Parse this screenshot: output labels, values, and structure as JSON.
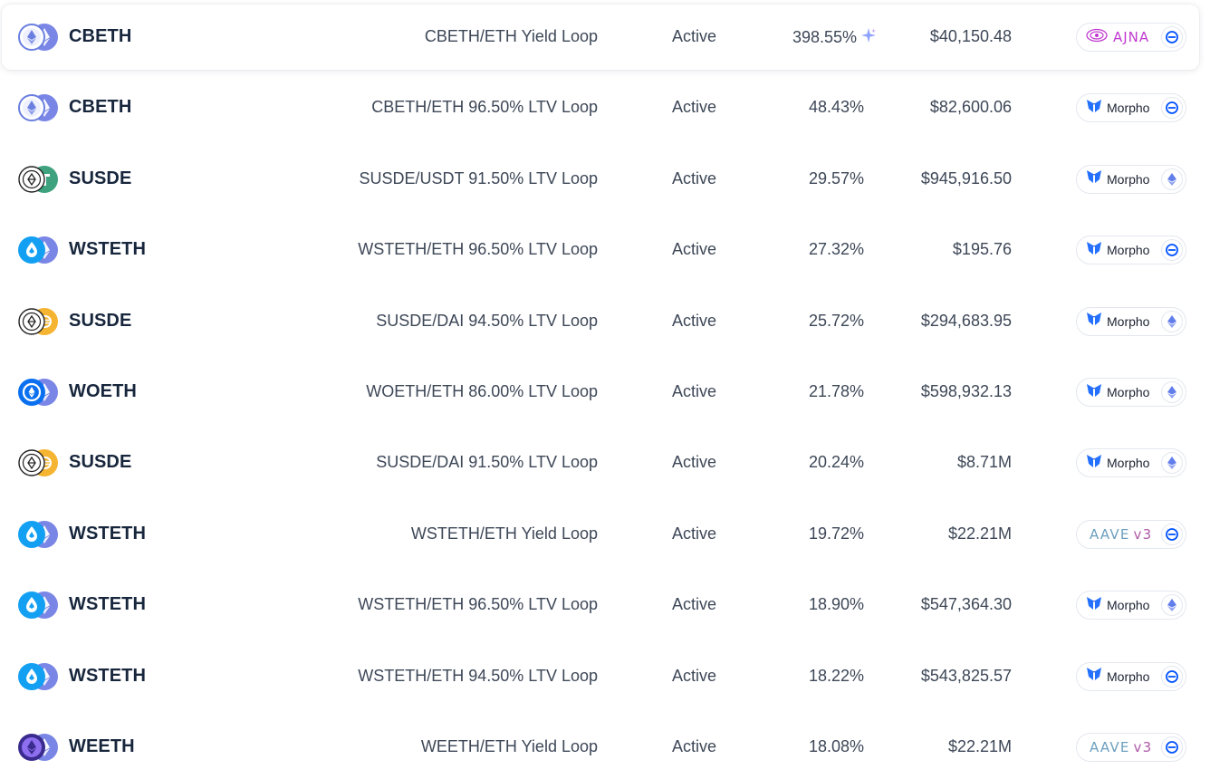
{
  "rows": [
    {
      "token": "CBETH",
      "strategy": "CBETH/ETH Yield Loop",
      "status": "Active",
      "apy": "398.55%",
      "tvl": "$40,150.48",
      "protocol": "ajna",
      "protocol_label": "AJNA",
      "chain": "base",
      "icons": [
        "cbeth",
        "eth"
      ],
      "boosted": true,
      "highlight": true
    },
    {
      "token": "CBETH",
      "strategy": "CBETH/ETH 96.50% LTV Loop",
      "status": "Active",
      "apy": "48.43%",
      "tvl": "$82,600.06",
      "protocol": "morpho",
      "protocol_label": "Morpho",
      "chain": "base",
      "icons": [
        "cbeth",
        "eth"
      ]
    },
    {
      "token": "SUSDE",
      "strategy": "SUSDE/USDT 91.50% LTV Loop",
      "status": "Active",
      "apy": "29.57%",
      "tvl": "$945,916.50",
      "protocol": "morpho",
      "protocol_label": "Morpho",
      "chain": "ethereum",
      "icons": [
        "susde",
        "usdt"
      ]
    },
    {
      "token": "WSTETH",
      "strategy": "WSTETH/ETH 96.50% LTV Loop",
      "status": "Active",
      "apy": "27.32%",
      "tvl": "$195.76",
      "protocol": "morpho",
      "protocol_label": "Morpho",
      "chain": "base",
      "icons": [
        "wsteth",
        "eth"
      ]
    },
    {
      "token": "SUSDE",
      "strategy": "SUSDE/DAI 94.50% LTV Loop",
      "status": "Active",
      "apy": "25.72%",
      "tvl": "$294,683.95",
      "protocol": "morpho",
      "protocol_label": "Morpho",
      "chain": "ethereum",
      "icons": [
        "susde",
        "dai"
      ]
    },
    {
      "token": "WOETH",
      "strategy": "WOETH/ETH 86.00% LTV Loop",
      "status": "Active",
      "apy": "21.78%",
      "tvl": "$598,932.13",
      "protocol": "morpho",
      "protocol_label": "Morpho",
      "chain": "ethereum",
      "icons": [
        "woeth",
        "eth"
      ]
    },
    {
      "token": "SUSDE",
      "strategy": "SUSDE/DAI 91.50% LTV Loop",
      "status": "Active",
      "apy": "20.24%",
      "tvl": "$8.71M",
      "protocol": "morpho",
      "protocol_label": "Morpho",
      "chain": "ethereum",
      "icons": [
        "susde",
        "dai"
      ]
    },
    {
      "token": "WSTETH",
      "strategy": "WSTETH/ETH Yield Loop",
      "status": "Active",
      "apy": "19.72%",
      "tvl": "$22.21M",
      "protocol": "aave",
      "protocol_label": "AAVE",
      "protocol_version": "v3",
      "chain": "base",
      "icons": [
        "wsteth",
        "eth"
      ]
    },
    {
      "token": "WSTETH",
      "strategy": "WSTETH/ETH 96.50% LTV Loop",
      "status": "Active",
      "apy": "18.90%",
      "tvl": "$547,364.30",
      "protocol": "morpho",
      "protocol_label": "Morpho",
      "chain": "ethereum",
      "icons": [
        "wsteth",
        "eth"
      ]
    },
    {
      "token": "WSTETH",
      "strategy": "WSTETH/ETH 94.50% LTV Loop",
      "status": "Active",
      "apy": "18.22%",
      "tvl": "$543,825.57",
      "protocol": "morpho",
      "protocol_label": "Morpho",
      "chain": "base",
      "icons": [
        "wsteth",
        "eth"
      ]
    },
    {
      "token": "WEETH",
      "strategy": "WEETH/ETH Yield Loop",
      "status": "Active",
      "apy": "18.08%",
      "tvl": "$22.21M",
      "protocol": "aave",
      "protocol_label": "AAVE",
      "protocol_version": "v3",
      "chain": "base",
      "icons": [
        "weeth",
        "eth"
      ]
    }
  ],
  "colors": {
    "text_primary": "#17263c",
    "text_secondary": "#3d4757",
    "ajna": "#c13ad0",
    "morpho": "#2470ff",
    "base_chain": "#0052ff",
    "eth_chain": "#627eea",
    "badge_border": "#e3e7ee"
  }
}
